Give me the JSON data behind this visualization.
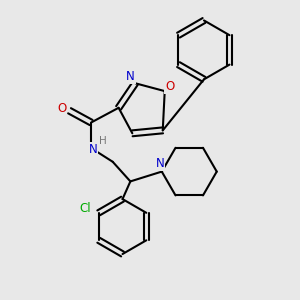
{
  "background_color": "#e8e8e8",
  "bond_width": 1.5,
  "font_size": 8.5,
  "atom_colors": {
    "N": "#0000cc",
    "O": "#cc0000",
    "Cl": "#00aa00",
    "H": "#777777",
    "C": "black"
  },
  "figsize": [
    3.0,
    3.0
  ],
  "dpi": 100
}
